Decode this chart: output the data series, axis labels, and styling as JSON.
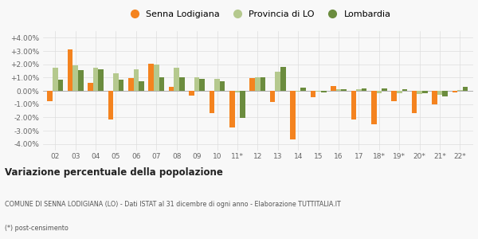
{
  "years": [
    "02",
    "03",
    "04",
    "05",
    "06",
    "07",
    "08",
    "09",
    "10",
    "11*",
    "12",
    "13",
    "14",
    "15",
    "16",
    "17",
    "18*",
    "19*",
    "20*",
    "21*",
    "22*"
  ],
  "senna": [
    -0.75,
    3.15,
    0.6,
    -2.15,
    0.95,
    2.05,
    0.3,
    -0.35,
    -1.65,
    -2.75,
    0.95,
    -0.85,
    -3.65,
    -0.45,
    0.35,
    -2.15,
    -2.5,
    -0.8,
    -1.65,
    -1.0,
    -0.1
  ],
  "provincia": [
    1.75,
    1.95,
    1.75,
    1.35,
    1.6,
    2.0,
    1.75,
    1.0,
    0.9,
    -0.1,
    1.0,
    1.45,
    -0.05,
    -0.05,
    0.15,
    0.15,
    -0.15,
    -0.2,
    -0.25,
    -0.3,
    0.05
  ],
  "lombardia": [
    0.85,
    1.55,
    1.6,
    0.85,
    0.75,
    1.0,
    1.0,
    0.9,
    0.75,
    -2.05,
    1.0,
    1.8,
    0.25,
    -0.1,
    0.1,
    0.2,
    0.2,
    0.15,
    -0.15,
    -0.4,
    0.3
  ],
  "color_senna": "#f4831f",
  "color_provincia": "#b5c98e",
  "color_lombardia": "#6b8c3e",
  "title": "Variazione percentuale della popolazione",
  "subtitle": "COMUNE DI SENNA LODIGIANA (LO) - Dati ISTAT al 31 dicembre di ogni anno - Elaborazione TUTTITALIA.IT",
  "footnote": "(*) post-censimento",
  "legend_labels": [
    "Senna Lodigiana",
    "Provincia di LO",
    "Lombardia"
  ],
  "ylim": [
    -4.5,
    4.5
  ],
  "yticks": [
    -4.0,
    -3.0,
    -2.0,
    -1.0,
    0.0,
    1.0,
    2.0,
    3.0,
    4.0
  ],
  "bg_color": "#f8f8f8"
}
